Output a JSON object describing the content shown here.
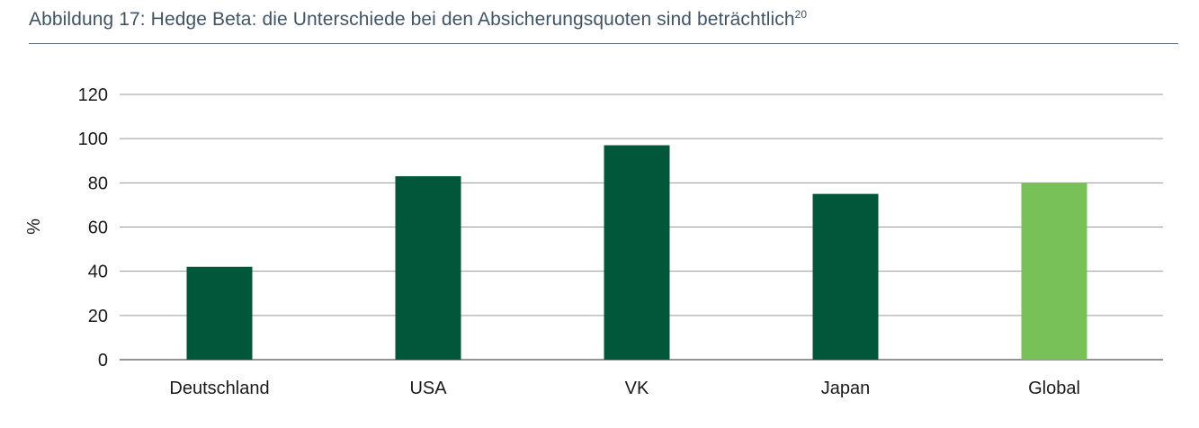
{
  "figure": {
    "title": "Abbildung 17: Hedge Beta: die Unterschiede bei den Absicherungsquoten sind beträchtlich",
    "title_footnote": "20"
  },
  "chart_data": {
    "type": "bar",
    "title": "Abbildung 17: Hedge Beta: die Unterschiede bei den Absicherungsquoten sind beträchtlich",
    "categories": [
      "Deutschland",
      "USA",
      "VK",
      "Japan",
      "Global"
    ],
    "values": [
      42,
      83,
      97,
      75,
      80
    ],
    "bar_colors": [
      "#00573a",
      "#00573a",
      "#00573a",
      "#00573a",
      "#77c158"
    ],
    "xlabel": "",
    "ylabel": "%",
    "ylim": [
      0,
      120
    ],
    "yticks": [
      0,
      20,
      40,
      60,
      80,
      100,
      120
    ],
    "grid": true,
    "legend": "none",
    "colors": {
      "gridline": "#9a9a9a",
      "axis": "#555555"
    }
  }
}
